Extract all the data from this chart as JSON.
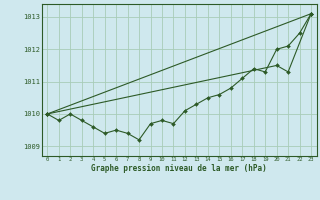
{
  "x": [
    0,
    1,
    2,
    3,
    4,
    5,
    6,
    7,
    8,
    9,
    10,
    11,
    12,
    13,
    14,
    15,
    16,
    17,
    18,
    19,
    20,
    21,
    22,
    23
  ],
  "line1": [
    1010.0,
    1009.8,
    1010.0,
    1009.8,
    1009.6,
    1009.4,
    1009.5,
    1009.4,
    1009.2,
    1009.7,
    1009.8,
    1009.7,
    1010.1,
    1010.3,
    1010.5,
    1010.6,
    1010.8,
    1011.1,
    1011.4,
    1011.3,
    1012.0,
    1012.1,
    1012.5,
    1013.1
  ],
  "line2_x": [
    0,
    23
  ],
  "line2_y": [
    1010.0,
    1013.1
  ],
  "line3_x": [
    0,
    20,
    21,
    23
  ],
  "line3_y": [
    1010.0,
    1011.5,
    1011.3,
    1013.1
  ],
  "background_color": "#cfe8ee",
  "grid_color": "#a8ccb8",
  "line_color": "#2d5a27",
  "xlabel": "Graphe pression niveau de la mer (hPa)",
  "ylim": [
    1008.7,
    1013.4
  ],
  "xlim": [
    -0.5,
    23.5
  ],
  "yticks": [
    1009,
    1010,
    1011,
    1012,
    1013
  ],
  "xticks": [
    0,
    1,
    2,
    3,
    4,
    5,
    6,
    7,
    8,
    9,
    10,
    11,
    12,
    13,
    14,
    15,
    16,
    17,
    18,
    19,
    20,
    21,
    22,
    23
  ]
}
